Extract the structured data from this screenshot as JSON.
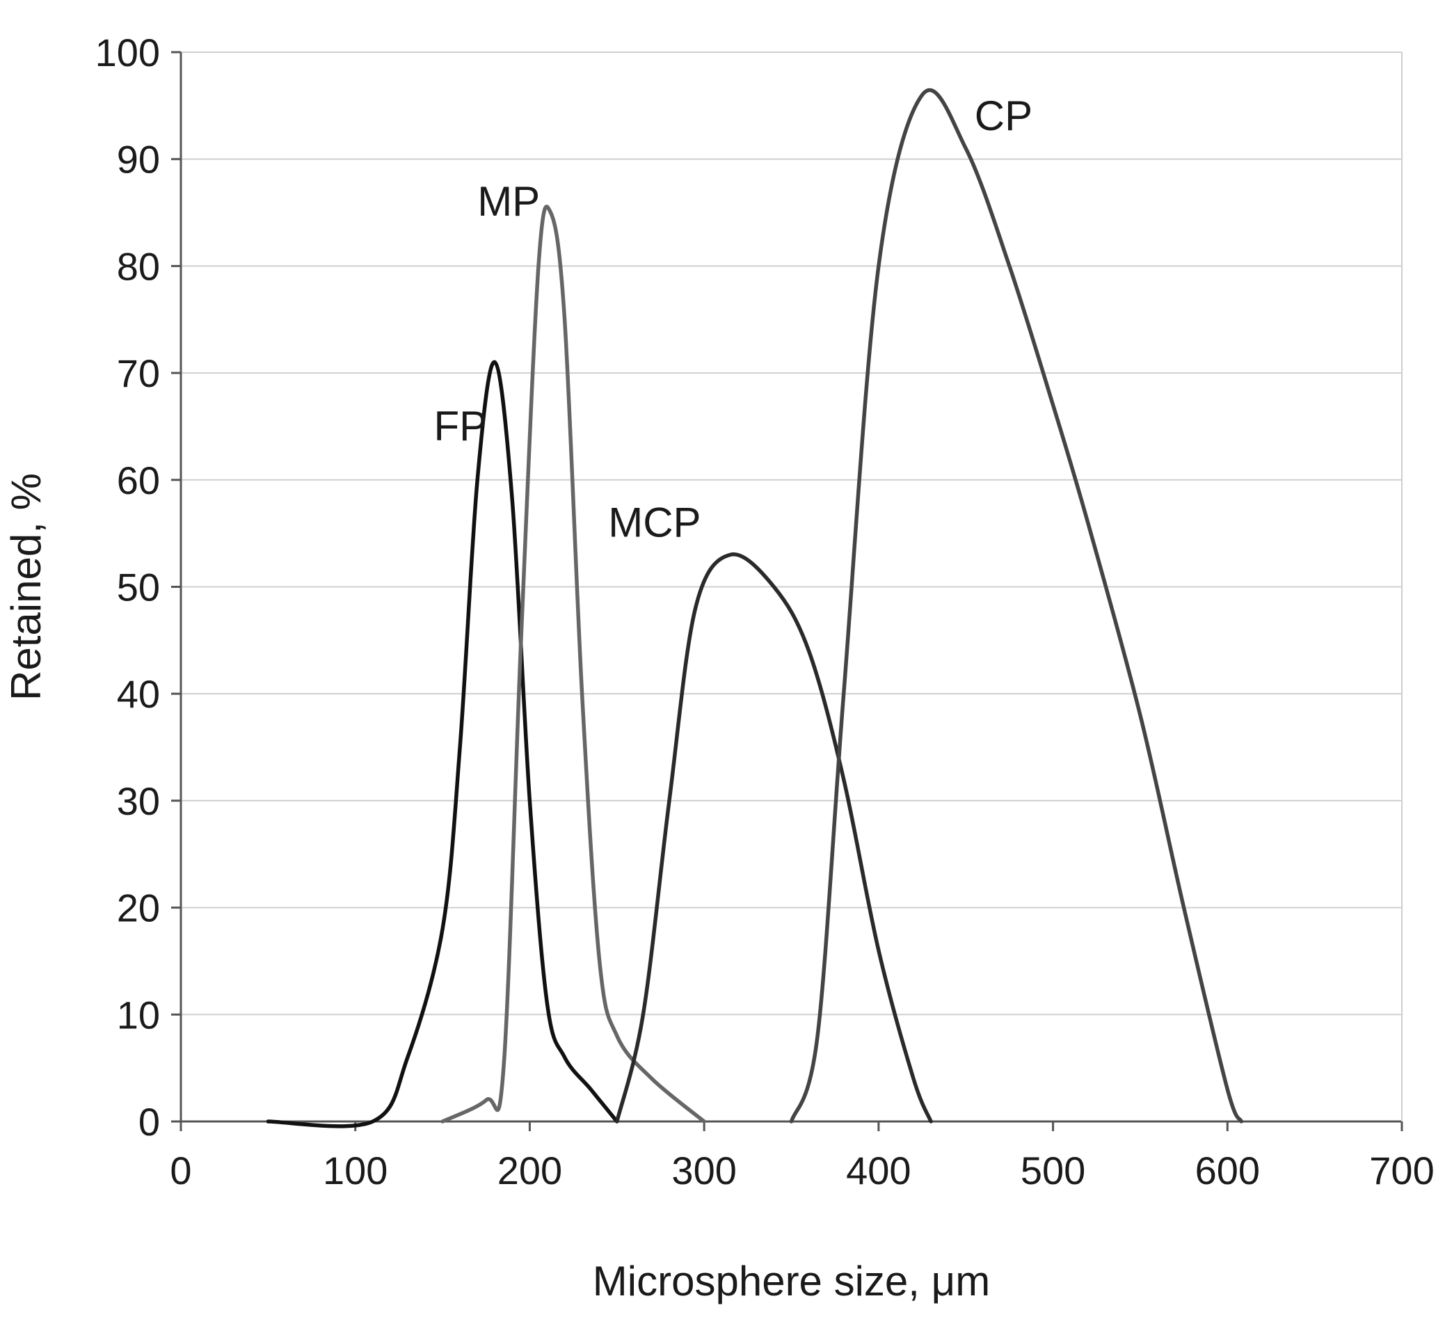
{
  "chart_data": {
    "type": "line",
    "title": "",
    "xlabel": "Microsphere size, μm",
    "ylabel": "Retained, %",
    "xlim": [
      0,
      700
    ],
    "ylim": [
      0,
      100
    ],
    "x_ticks": [
      0,
      100,
      200,
      300,
      400,
      500,
      600,
      700
    ],
    "y_ticks": [
      0,
      10,
      20,
      30,
      40,
      50,
      60,
      70,
      80,
      90,
      100
    ],
    "grid": true,
    "legend": "none (series labeled directly on curves)",
    "series": [
      {
        "name": "FP",
        "color": "#111111",
        "points": [
          [
            50,
            0
          ],
          [
            110,
            0
          ],
          [
            130,
            6
          ],
          [
            150,
            18
          ],
          [
            160,
            35
          ],
          [
            170,
            60
          ],
          [
            180,
            71
          ],
          [
            190,
            58
          ],
          [
            200,
            30
          ],
          [
            210,
            11
          ],
          [
            220,
            6
          ],
          [
            235,
            3
          ],
          [
            250,
            0
          ]
        ]
      },
      {
        "name": "MP",
        "color": "#666666",
        "points": [
          [
            150,
            0
          ],
          [
            175,
            2
          ],
          [
            185,
            5
          ],
          [
            195,
            45
          ],
          [
            205,
            80
          ],
          [
            212,
            85
          ],
          [
            220,
            75
          ],
          [
            230,
            40
          ],
          [
            240,
            15
          ],
          [
            250,
            8
          ],
          [
            270,
            4
          ],
          [
            300,
            0
          ]
        ]
      },
      {
        "name": "MCP",
        "color": "#2a2a2a",
        "points": [
          [
            250,
            0
          ],
          [
            265,
            10
          ],
          [
            280,
            30
          ],
          [
            295,
            48
          ],
          [
            315,
            53
          ],
          [
            340,
            50
          ],
          [
            360,
            44
          ],
          [
            380,
            32
          ],
          [
            400,
            16
          ],
          [
            420,
            4
          ],
          [
            430,
            0
          ]
        ]
      },
      {
        "name": "CP",
        "color": "#444444",
        "points": [
          [
            350,
            0
          ],
          [
            365,
            8
          ],
          [
            380,
            40
          ],
          [
            400,
            80
          ],
          [
            425,
            96
          ],
          [
            450,
            91
          ],
          [
            475,
            80
          ],
          [
            500,
            67
          ],
          [
            520,
            56
          ],
          [
            550,
            38
          ],
          [
            575,
            20
          ],
          [
            600,
            3
          ],
          [
            608,
            0
          ]
        ]
      }
    ],
    "annotations": [
      {
        "text": "FP",
        "x": 145,
        "y": 65
      },
      {
        "text": "MP",
        "x": 170,
        "y": 86
      },
      {
        "text": "MCP",
        "x": 245,
        "y": 56
      },
      {
        "text": "CP",
        "x": 455,
        "y": 94
      }
    ]
  }
}
